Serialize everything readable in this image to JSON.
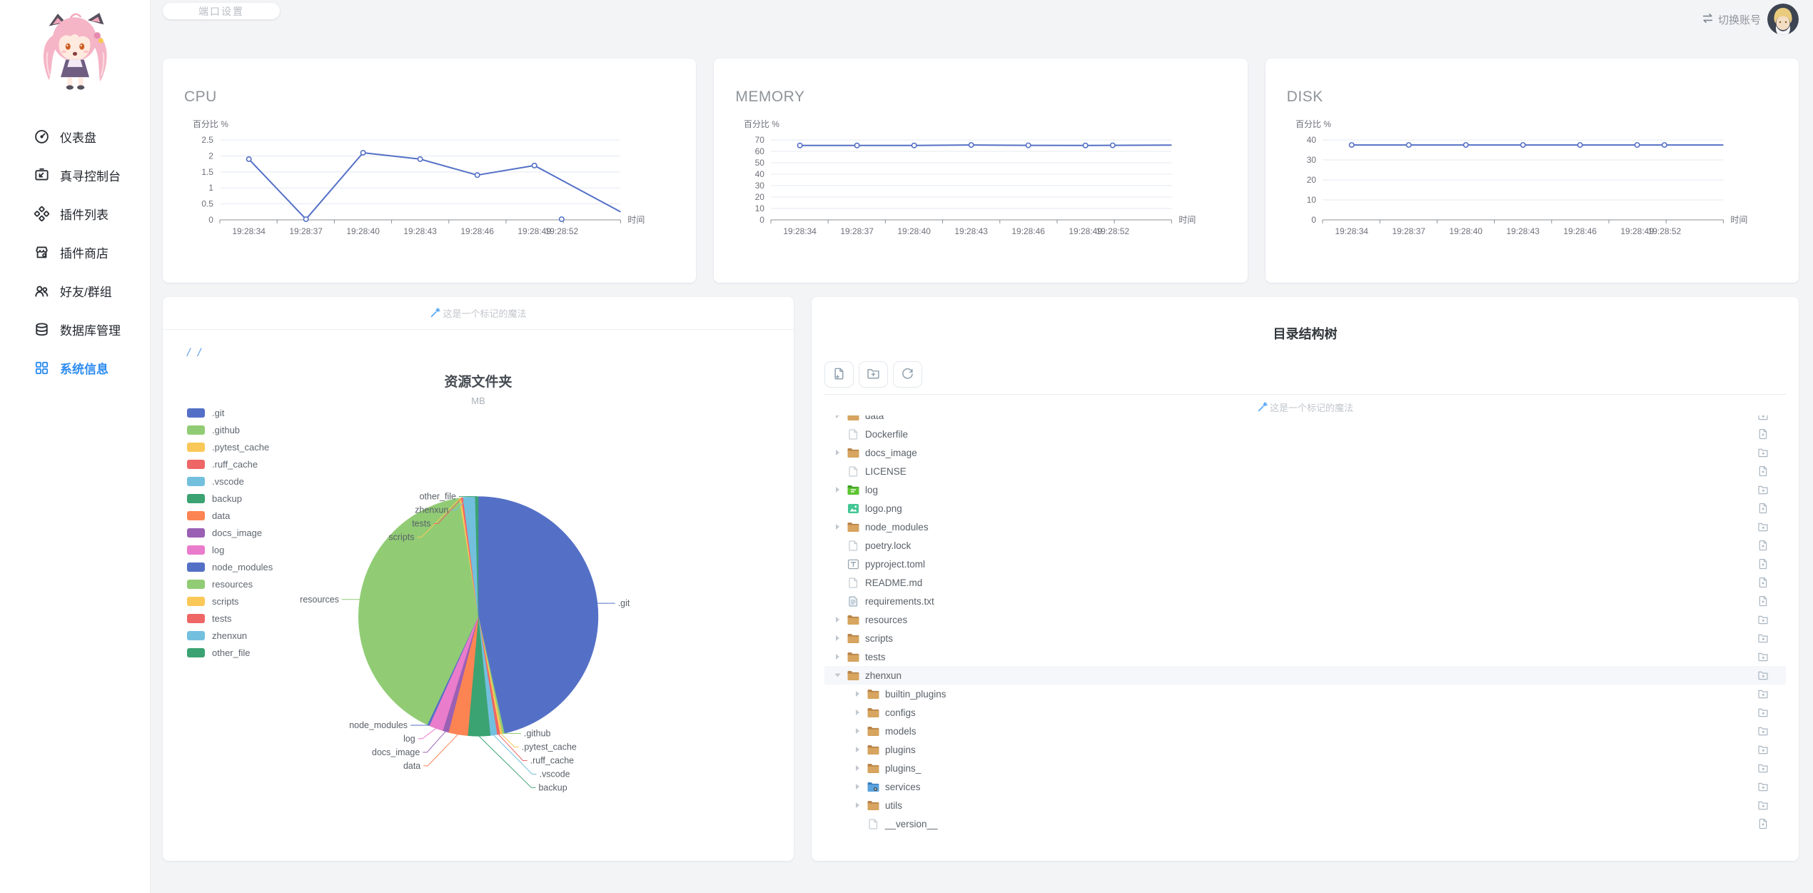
{
  "topbar": {
    "port_button": "端口设置",
    "switch_label": "切换账号"
  },
  "sidebar": {
    "items": [
      {
        "label": "仪表盘",
        "icon": "dashboard-icon",
        "active": false
      },
      {
        "label": "真寻控制台",
        "icon": "console-icon",
        "active": false
      },
      {
        "label": "插件列表",
        "icon": "plugins-icon",
        "active": false
      },
      {
        "label": "插件商店",
        "icon": "store-icon",
        "active": false
      },
      {
        "label": "好友/群组",
        "icon": "friends-icon",
        "active": false
      },
      {
        "label": "数据库管理",
        "icon": "database-icon",
        "active": false
      },
      {
        "label": "系统信息",
        "icon": "grid-icon",
        "active": true
      }
    ]
  },
  "labels": {
    "magic": "这是一个标记的魔法",
    "breadcrumb": "/ /"
  },
  "chart_data": [
    {
      "id": "cpu",
      "type": "line",
      "title": "CPU",
      "ylabel": "百分比 %",
      "xlabel": "时间",
      "color": "#5470c6",
      "categories": [
        "19:28:34",
        "19:28:37",
        "19:28:40",
        "19:28:43",
        "19:28:46",
        "19:28:49",
        "19:28:52"
      ],
      "values": [
        1.9,
        0.02,
        2.1,
        1.9,
        1.4,
        1.7,
        0.02
      ],
      "edge_value": 0.25,
      "ylim": [
        0,
        2.5
      ],
      "ytick_step": 0.5,
      "grid": true,
      "legend": "none"
    },
    {
      "id": "memory",
      "type": "line",
      "title": "MEMORY",
      "ylabel": "百分比 %",
      "xlabel": "时间",
      "color": "#5470c6",
      "categories": [
        "19:28:34",
        "19:28:37",
        "19:28:40",
        "19:28:43",
        "19:28:46",
        "19:28:49",
        "19:28:52"
      ],
      "values": [
        65.2,
        65.2,
        65.2,
        65.6,
        65.3,
        65.2,
        65.3
      ],
      "edge_value": 65.5,
      "ylim": [
        0,
        70
      ],
      "ytick_step": 10,
      "grid": true,
      "legend": "none"
    },
    {
      "id": "disk",
      "type": "line",
      "title": "DISK",
      "ylabel": "百分比 %",
      "xlabel": "时间",
      "color": "#5470c6",
      "categories": [
        "19:28:34",
        "19:28:37",
        "19:28:40",
        "19:28:43",
        "19:28:46",
        "19:28:49",
        "19:28:52"
      ],
      "values": [
        37.5,
        37.5,
        37.5,
        37.5,
        37.5,
        37.5,
        37.5
      ],
      "edge_value": 37.5,
      "ylim": [
        0,
        40
      ],
      "ytick_step": 10,
      "grid": true,
      "legend": "none"
    },
    {
      "id": "resource_folders",
      "type": "pie",
      "title": "资源文件夹",
      "subtitle": "MB",
      "unit": "MB",
      "note": "values are estimated percent shares read from the pie",
      "slices": [
        {
          "name": ".git",
          "pct": 46.5,
          "color": "#5470c6"
        },
        {
          "name": ".github",
          "pct": 0.3,
          "color": "#91cc75"
        },
        {
          "name": ".pytest_cache",
          "pct": 0.3,
          "color": "#fac858"
        },
        {
          "name": ".ruff_cache",
          "pct": 0.4,
          "color": "#ee6666"
        },
        {
          "name": ".vscode",
          "pct": 0.9,
          "color": "#73c0de"
        },
        {
          "name": "backup",
          "pct": 3.0,
          "color": "#3ba272"
        },
        {
          "name": "data",
          "pct": 2.6,
          "color": "#fc8452"
        },
        {
          "name": "docs_image",
          "pct": 0.8,
          "color": "#9a60b4"
        },
        {
          "name": "log",
          "pct": 1.9,
          "color": "#ea7ccc"
        },
        {
          "name": "node_modules",
          "pct": 0.3,
          "color": "#5470c6"
        },
        {
          "name": "resources",
          "pct": 40.5,
          "color": "#91cc75"
        },
        {
          "name": "scripts",
          "pct": 0.25,
          "color": "#fac858"
        },
        {
          "name": "tests",
          "pct": 0.25,
          "color": "#ee6666"
        },
        {
          "name": "zhenxun",
          "pct": 1.6,
          "color": "#73c0de"
        },
        {
          "name": "other_file",
          "pct": 0.4,
          "color": "#3ba272"
        }
      ]
    }
  ],
  "tree_card": {
    "title": "目录结构树",
    "toolbar": [
      {
        "icon": "new-file-icon"
      },
      {
        "icon": "new-folder-icon"
      },
      {
        "icon": "refresh-icon"
      }
    ],
    "rows": [
      {
        "name": "data",
        "icon": "folder",
        "caret": "collapsed",
        "level": 0,
        "action": "folder"
      },
      {
        "name": "Dockerfile",
        "icon": "file",
        "caret": null,
        "level": 0,
        "action": "file"
      },
      {
        "name": "docs_image",
        "icon": "folder",
        "caret": "collapsed",
        "level": 0,
        "action": "folder"
      },
      {
        "name": "LICENSE",
        "icon": "file",
        "caret": null,
        "level": 0,
        "action": "file"
      },
      {
        "name": "log",
        "icon": "folder-log",
        "caret": "collapsed",
        "level": 0,
        "action": "folder"
      },
      {
        "name": "logo.png",
        "icon": "image",
        "caret": null,
        "level": 0,
        "action": "file"
      },
      {
        "name": "node_modules",
        "icon": "folder",
        "caret": "collapsed",
        "level": 0,
        "action": "folder"
      },
      {
        "name": "poetry.lock",
        "icon": "file",
        "caret": null,
        "level": 0,
        "action": "file"
      },
      {
        "name": "pyproject.toml",
        "icon": "toml",
        "caret": null,
        "level": 0,
        "action": "file"
      },
      {
        "name": "README.md",
        "icon": "file",
        "caret": null,
        "level": 0,
        "action": "file"
      },
      {
        "name": "requirements.txt",
        "icon": "txt",
        "caret": null,
        "level": 0,
        "action": "file"
      },
      {
        "name": "resources",
        "icon": "folder",
        "caret": "collapsed",
        "level": 0,
        "action": "folder"
      },
      {
        "name": "scripts",
        "icon": "folder",
        "caret": "collapsed",
        "level": 0,
        "action": "folder"
      },
      {
        "name": "tests",
        "icon": "folder",
        "caret": "collapsed",
        "level": 0,
        "action": "folder"
      },
      {
        "name": "zhenxun",
        "icon": "folder",
        "caret": "expanded",
        "level": 0,
        "action": "folder",
        "selected": true
      },
      {
        "name": "builtin_plugins",
        "icon": "folder",
        "caret": "collapsed",
        "level": 1,
        "action": "folder"
      },
      {
        "name": "configs",
        "icon": "folder",
        "caret": "collapsed",
        "level": 1,
        "action": "folder"
      },
      {
        "name": "models",
        "icon": "folder",
        "caret": "collapsed",
        "level": 1,
        "action": "folder"
      },
      {
        "name": "plugins",
        "icon": "folder",
        "caret": "collapsed",
        "level": 1,
        "action": "folder"
      },
      {
        "name": "plugins_",
        "icon": "folder",
        "caret": "collapsed",
        "level": 1,
        "action": "folder"
      },
      {
        "name": "services",
        "icon": "folder-services",
        "caret": "collapsed",
        "level": 1,
        "action": "folder"
      },
      {
        "name": "utils",
        "icon": "folder",
        "caret": "collapsed",
        "level": 1,
        "action": "folder"
      },
      {
        "name": "__version__",
        "icon": "file",
        "caret": null,
        "level": 1,
        "action": "file"
      }
    ]
  }
}
